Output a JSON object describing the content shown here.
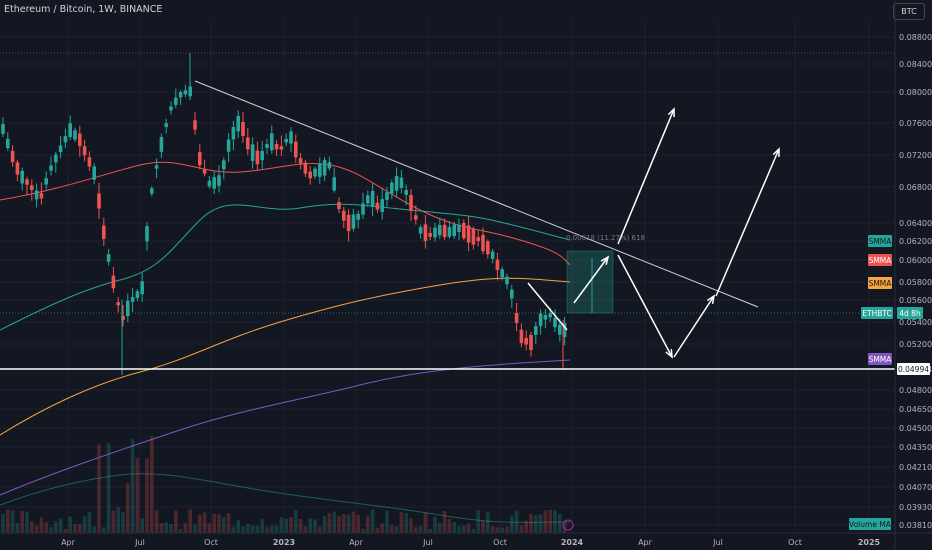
{
  "header": {
    "title": "Ethereum / Bitcoin, 1W, BINANCE",
    "currency_button": "BTC"
  },
  "chart_data": {
    "type": "candlestick",
    "symbol": "ETHBTC",
    "interval": "1W",
    "exchange": "BINANCE",
    "y_ticks": [
      "0.08800",
      "0.08400",
      "0.08000",
      "0.07600",
      "0.07200",
      "0.06800",
      "0.06400",
      "0.06200",
      "0.06000",
      "0.05800",
      "0.05600",
      "0.05400",
      "0.05200",
      "0.04994",
      "0.04800",
      "0.04650",
      "0.04500",
      "0.04350",
      "0.04210",
      "0.04070",
      "0.03930",
      "0.03810"
    ],
    "x_ticks": [
      "Apr",
      "Jul",
      "Oct",
      "2023",
      "Apr",
      "Jul",
      "Oct",
      "2024",
      "Apr",
      "Jul",
      "Oct",
      "2025"
    ],
    "support_level": "0.04994",
    "badges": {
      "smma_1": "SMMA",
      "smma_2": "SMMA",
      "smma_3": "SMMA",
      "ethbtc_label": "ETHBTC",
      "ethbtc_time": "4d 8h",
      "smma_4": "SMMA",
      "support": "0.04994",
      "volume_ma": "Volume MA"
    },
    "measure_label": "0.00618 (11.27%) 618",
    "colors": {
      "up": "#26a69a",
      "down": "#ef5350",
      "smma_teal": "#26a69a",
      "smma_red": "#ef5350",
      "smma_orange": "#f7a440",
      "smma_purple": "#7e57c2",
      "background": "#131722"
    }
  }
}
